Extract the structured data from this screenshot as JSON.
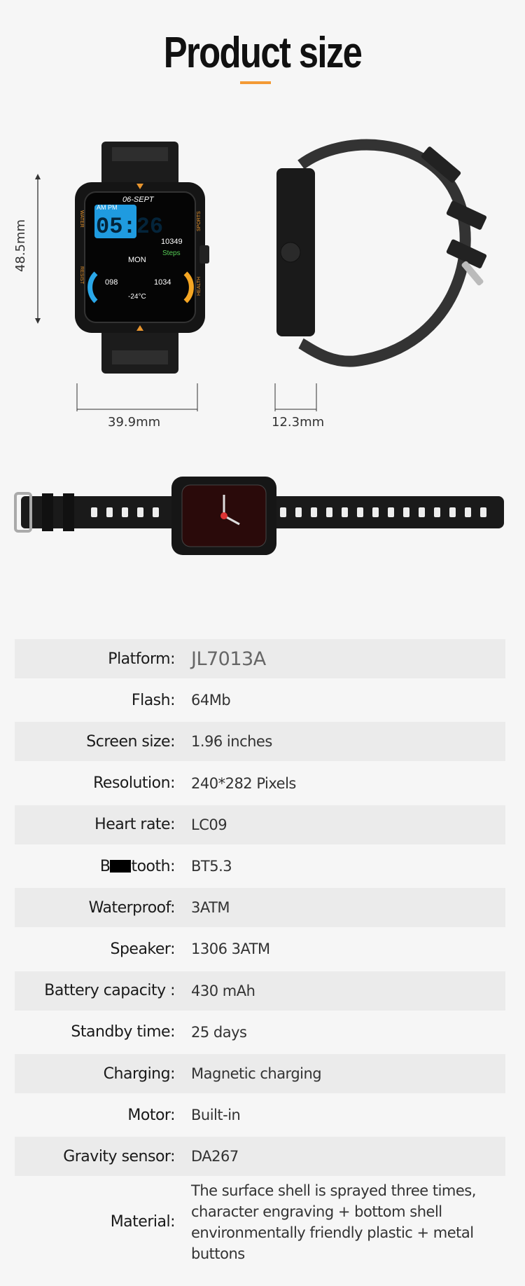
{
  "title": "Product size",
  "accent_color": "#f39a35",
  "dimensions": {
    "height": "48.5mm",
    "width": "39.9mm",
    "thickness": "12.3mm"
  },
  "watch_face": {
    "date": "06-SEPT",
    "ampm": "AM PM",
    "time": "05:26",
    "steps_value": "10349",
    "steps_label": "Steps",
    "day": "MON",
    "heart": "098",
    "calories": "1034",
    "temperature": "-24°C",
    "bezel_left": "WATER",
    "bezel_left2": "RESIST",
    "bezel_right": "SPORTS",
    "bezel_right2": "HEALTH"
  },
  "specs": [
    {
      "label": "Platform:",
      "value": "JL7013A"
    },
    {
      "label": "Flash:",
      "value": "64Mb"
    },
    {
      "label": "Screen size:",
      "value": "1.96 inches"
    },
    {
      "label": "Resolution:",
      "value": "240*282 Pixels"
    },
    {
      "label": "Heart rate:",
      "value": "LC09"
    },
    {
      "label_pre": "B",
      "label_post": "tooth:",
      "value": "BT5.3"
    },
    {
      "label": "Waterproof:",
      "value": "3ATM"
    },
    {
      "label": "Speaker:",
      "value": "1306 3ATM"
    },
    {
      "label": "Battery capacity :",
      "value": "430 mAh"
    },
    {
      "label": "Standby time:",
      "value": "25 days"
    },
    {
      "label": "Charging:",
      "value": "Magnetic charging"
    },
    {
      "label": "Motor:",
      "value": "Built-in"
    },
    {
      "label": "Gravity sensor:",
      "value": "DA267"
    },
    {
      "label": "Material:",
      "value": "The surface shell is sprayed three times, character engraving + bottom shell environmentally friendly plastic + metal buttons"
    }
  ]
}
